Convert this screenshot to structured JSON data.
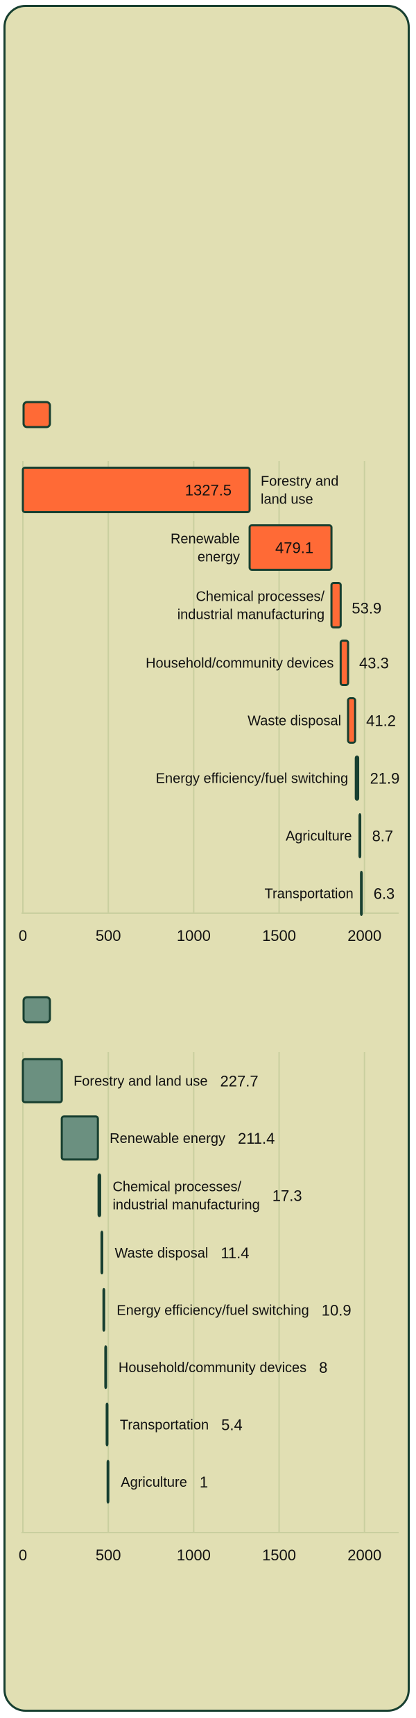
{
  "colors": {
    "background": "#e1dfb3",
    "border": "#173f30",
    "chart1_bar": "#ff6a36",
    "chart2_bar": "#6b9080",
    "grid": "#c9cf9f"
  },
  "chart_data": [
    {
      "type": "bar",
      "orientation": "horizontal-waterfall",
      "legend_swatch_color": "#ff6a36",
      "categories": [
        "Forestry and land use",
        "Renewable energy",
        "Chemical processes/ industrial manufacturing",
        "Household/community devices",
        "Waste disposal",
        "Energy efficiency/fuel switching",
        "Agriculture",
        "Transportation"
      ],
      "display_labels": [
        [
          "Forestry and",
          "land use"
        ],
        [
          "Renewable",
          "energy"
        ],
        [
          "Chemical processes/",
          "industrial manufacturing"
        ],
        [
          "Household/community devices"
        ],
        [
          "Waste disposal"
        ],
        [
          "Energy efficiency/fuel switching"
        ],
        [
          "Agriculture"
        ],
        [
          "Transportation"
        ]
      ],
      "values": [
        1327.5,
        479.1,
        53.9,
        43.3,
        41.2,
        21.9,
        8.7,
        6.3
      ],
      "value_labels": [
        "1327.5",
        "479.1",
        "53.9",
        "43.3",
        "41.2",
        "21.9",
        "8.7",
        "6.3"
      ],
      "xlim": [
        0,
        2200
      ],
      "xticks": [
        0,
        500,
        1000,
        1500,
        2000
      ],
      "xtick_labels": [
        "0",
        "500",
        "1000",
        "1500",
        "2000"
      ],
      "grid": true
    },
    {
      "type": "bar",
      "orientation": "horizontal-waterfall",
      "legend_swatch_color": "#6b9080",
      "categories": [
        "Forestry and land use",
        "Renewable energy",
        "Chemical processes/ industrial manufacturing",
        "Waste disposal",
        "Energy efficiency/fuel switching",
        "Household/community devices",
        "Transportation",
        "Agriculture"
      ],
      "display_labels": [
        [
          "Forestry and land use"
        ],
        [
          "Renewable energy"
        ],
        [
          "Chemical processes/",
          "industrial manufacturing"
        ],
        [
          "Waste disposal"
        ],
        [
          "Energy efficiency/fuel switching"
        ],
        [
          "Household/community devices"
        ],
        [
          "Transportation"
        ],
        [
          "Agriculture"
        ]
      ],
      "values": [
        227.7,
        211.4,
        17.3,
        11.4,
        10.9,
        8,
        5.4,
        1
      ],
      "value_labels": [
        "227.7",
        "211.4",
        "17.3",
        "11.4",
        "10.9",
        "8",
        "5.4",
        "1"
      ],
      "xlim": [
        0,
        2200
      ],
      "xticks": [
        0,
        500,
        1000,
        1500,
        2000
      ],
      "xtick_labels": [
        "0",
        "500",
        "1000",
        "1500",
        "2000"
      ],
      "grid": true
    }
  ]
}
